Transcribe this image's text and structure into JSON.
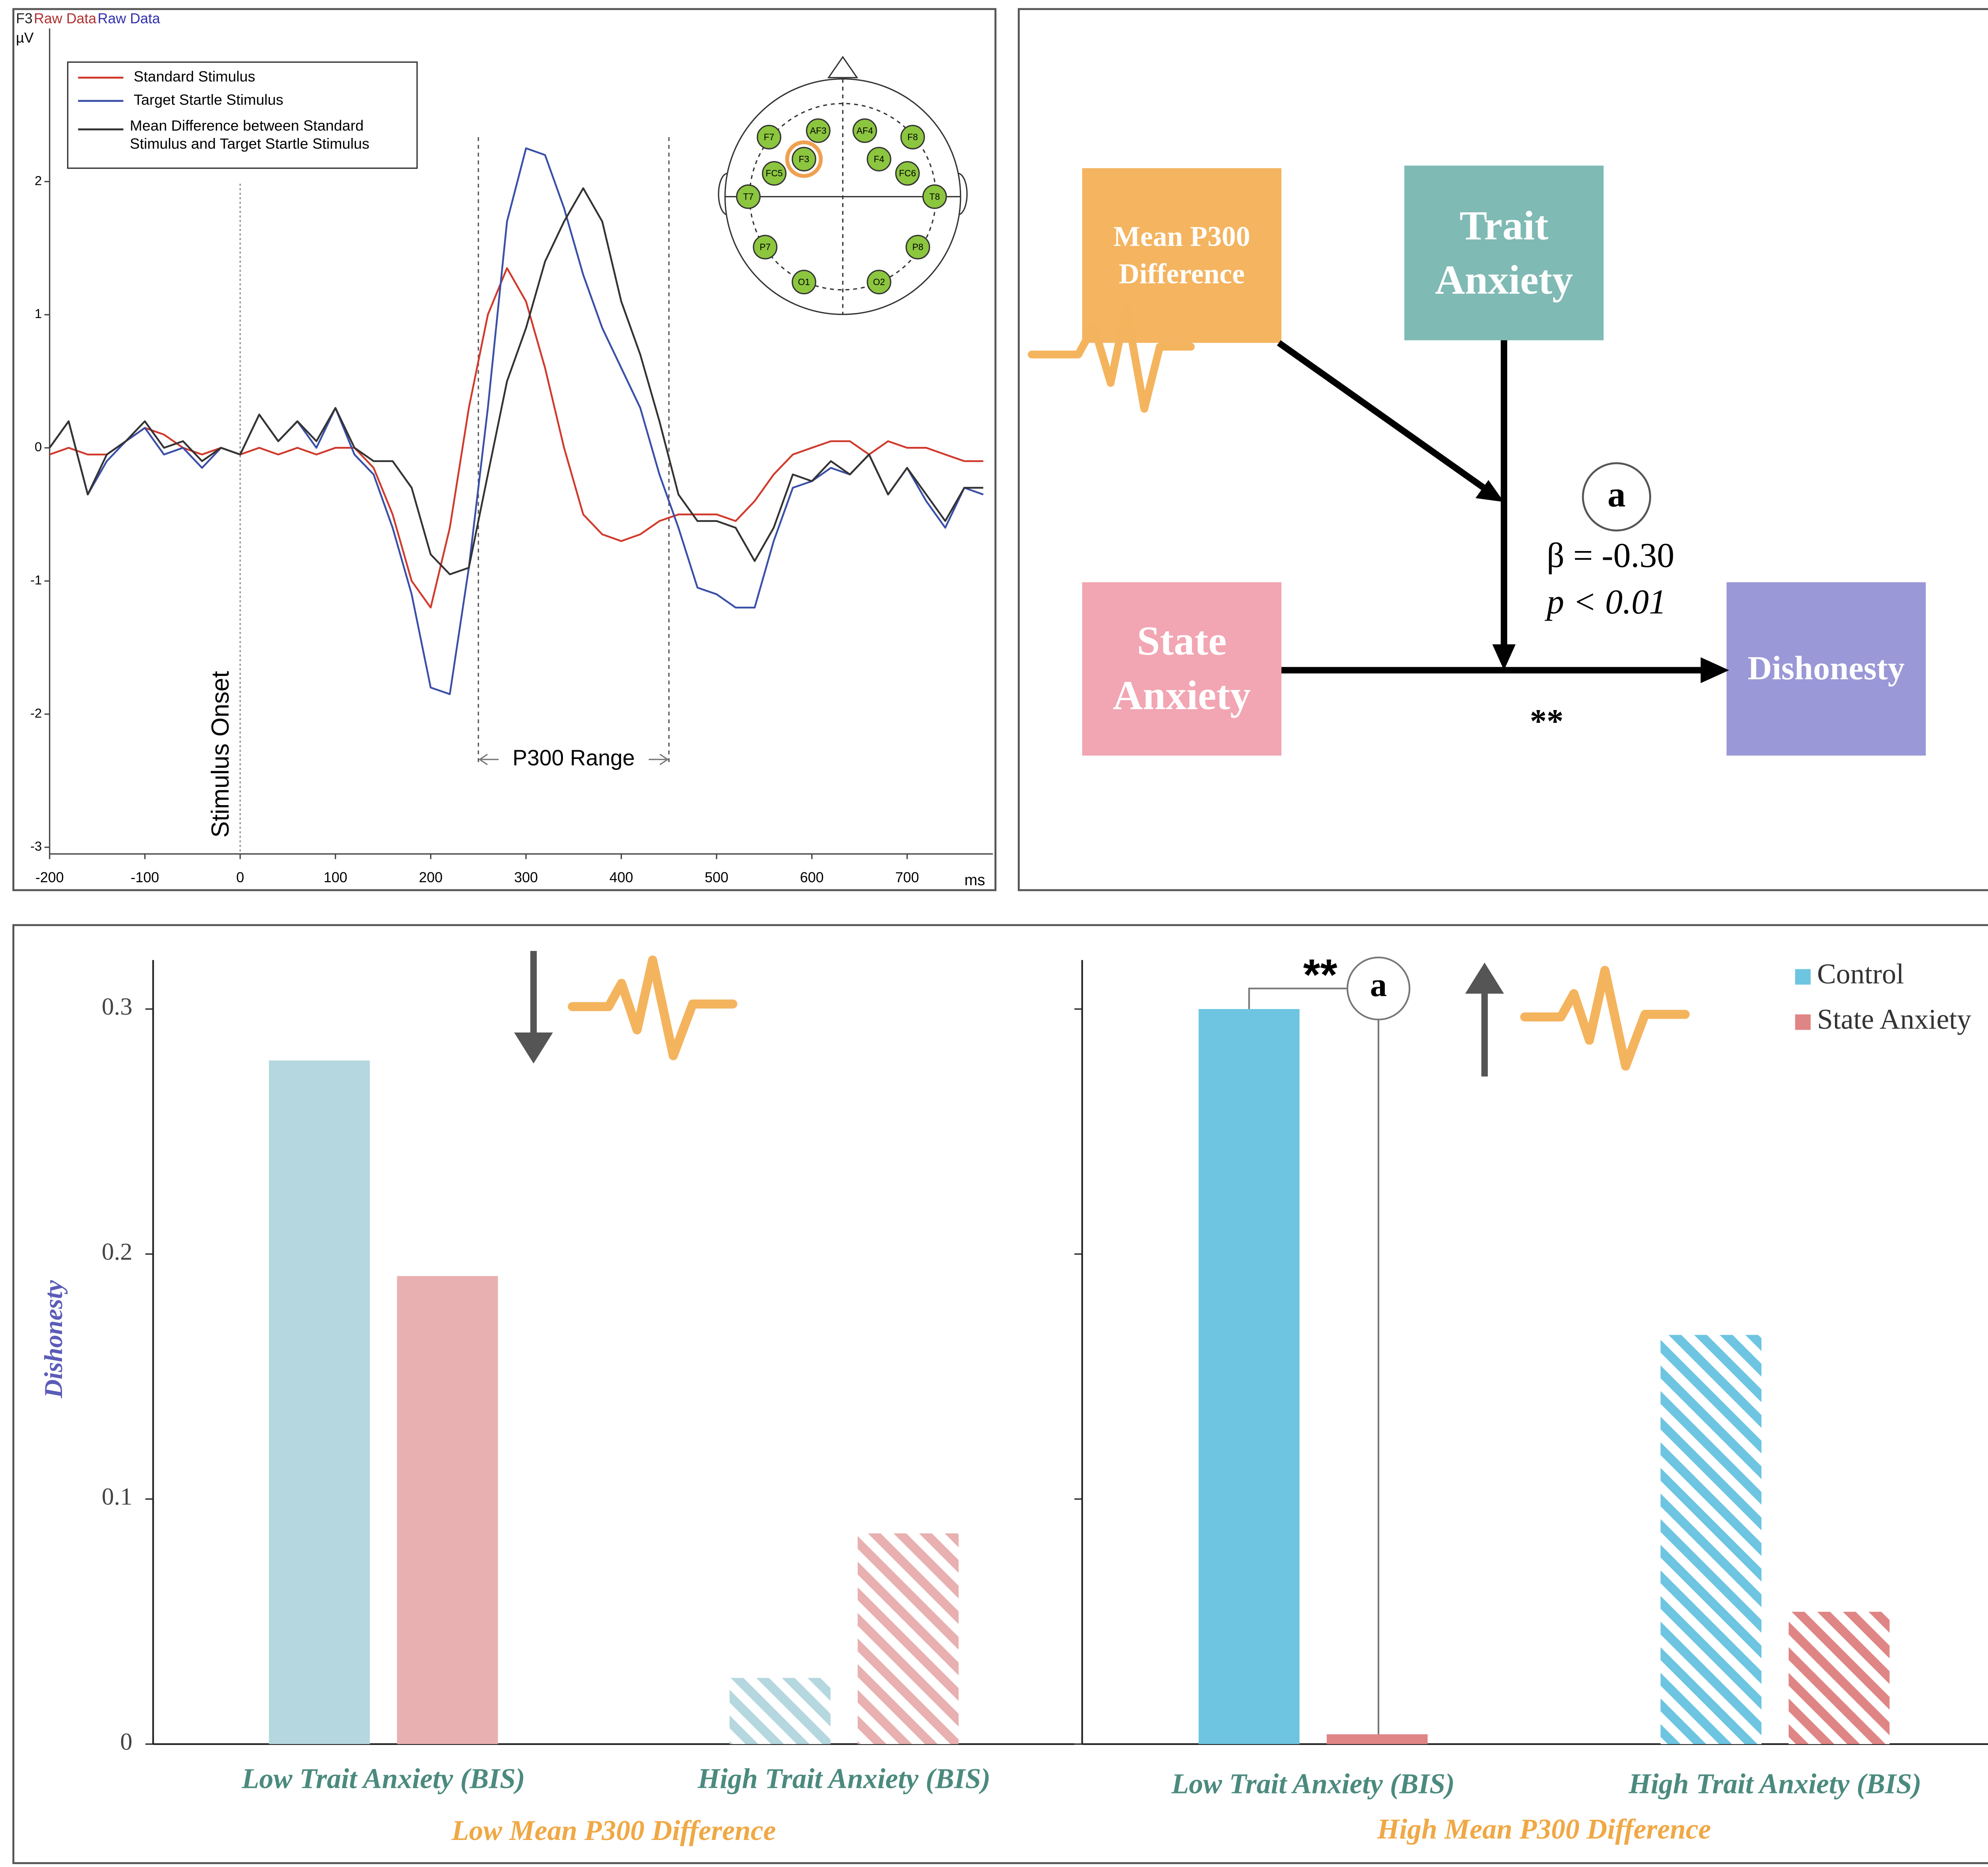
{
  "chart_data": [
    {
      "type": "line",
      "header": [
        "F3",
        "Raw Data",
        "Raw Data"
      ],
      "header_colors": [
        "#222222",
        "#b03030",
        "#3030b0"
      ],
      "ylabel": "µV",
      "xlabel": "ms",
      "x": [
        -200,
        -180,
        -160,
        -140,
        -120,
        -100,
        -80,
        -60,
        -40,
        -20,
        0,
        20,
        40,
        60,
        80,
        100,
        120,
        140,
        160,
        180,
        200,
        220,
        240,
        260,
        280,
        300,
        320,
        340,
        360,
        380,
        400,
        420,
        440,
        460,
        480,
        500,
        520,
        540,
        560,
        580,
        600,
        620,
        640,
        660,
        680,
        700,
        720,
        740,
        760,
        780
      ],
      "series": [
        {
          "name": "Standard Stimulus",
          "color": "#d03a2c",
          "values": [
            -0.05,
            0,
            -0.05,
            -0.05,
            0.05,
            0.15,
            0.1,
            0,
            -0.05,
            0,
            -0.05,
            0,
            -0.05,
            0,
            -0.05,
            0,
            0,
            -0.15,
            -0.5,
            -1.0,
            -1.2,
            -0.6,
            0.3,
            1.0,
            1.35,
            1.1,
            0.6,
            0,
            -0.5,
            -0.65,
            -0.7,
            -0.65,
            -0.55,
            -0.5,
            -0.5,
            -0.5,
            -0.55,
            -0.4,
            -0.2,
            -0.05,
            0,
            0.05,
            0.05,
            -0.05,
            0.05,
            0,
            0,
            -0.05,
            -0.1,
            -0.1
          ]
        },
        {
          "name": "Target Startle Stimulus",
          "color": "#3a4fa8",
          "values": [
            0,
            0.2,
            -0.35,
            -0.1,
            0.05,
            0.15,
            -0.05,
            0,
            -0.15,
            0,
            -0.05,
            0.25,
            0.05,
            0.2,
            0,
            0.3,
            -0.05,
            -0.2,
            -0.6,
            -1.1,
            -1.8,
            -1.85,
            -0.9,
            0.3,
            1.7,
            2.25,
            2.2,
            1.8,
            1.3,
            0.9,
            0.6,
            0.3,
            -0.2,
            -0.6,
            -1.05,
            -1.1,
            -1.2,
            -1.2,
            -0.7,
            -0.3,
            -0.25,
            -0.15,
            -0.2,
            -0.05,
            -0.35,
            -0.15,
            -0.4,
            -0.6,
            -0.3,
            -0.35
          ]
        },
        {
          "name": "Mean Difference between Standard Stimulus and Target Startle Stimulus",
          "color": "#333333",
          "values": [
            0,
            0.2,
            -0.35,
            -0.05,
            0.05,
            0.2,
            0,
            0.05,
            -0.1,
            0,
            -0.05,
            0.25,
            0.05,
            0.2,
            0.05,
            0.3,
            0,
            -0.1,
            -0.1,
            -0.3,
            -0.8,
            -0.95,
            -0.9,
            -0.2,
            0.5,
            0.9,
            1.4,
            1.7,
            1.95,
            1.7,
            1.1,
            0.7,
            0.2,
            -0.35,
            -0.55,
            -0.55,
            -0.6,
            -0.85,
            -0.6,
            -0.2,
            -0.25,
            -0.1,
            -0.2,
            -0.05,
            -0.35,
            -0.15,
            -0.35,
            -0.55,
            -0.3,
            -0.3
          ]
        }
      ],
      "xlim": [
        -200,
        790
      ],
      "ylim": [
        -3.05,
        3.15
      ],
      "xticks": [
        -200,
        -100,
        0,
        100,
        200,
        300,
        400,
        500,
        600,
        700
      ],
      "yticks": [
        -3,
        -2,
        -1,
        0,
        1,
        2
      ],
      "stimulus_onset": {
        "x": 0,
        "label": "Stimulus Onset"
      },
      "p300_range": {
        "range": [
          250,
          450
        ],
        "label": "P300 Range"
      },
      "electrodes": [
        "F7",
        "AF3",
        "AF4",
        "F8",
        "F3",
        "F4",
        "FC5",
        "FC6",
        "T7",
        "T8",
        "P7",
        "P8",
        "O1",
        "O2"
      ],
      "highlight": 4
    },
    {
      "type": "bar",
      "categories": [
        "Low Trait Anxiety (BIS)",
        "High Trait Anxiety (BIS)"
      ],
      "xlabel": "Low Mean P300 Difference",
      "ylabel": "Dishonesty",
      "series": [
        {
          "name": "Control",
          "color": "#b5d7df",
          "values": [
            0.279,
            0.027
          ]
        },
        {
          "name": "State Anxiety",
          "color": "#e8b0b0",
          "values": [
            0.191,
            0.086
          ]
        }
      ],
      "hatch": [
        false,
        true
      ],
      "ylim": [
        0,
        0.32
      ],
      "yticks": [
        0,
        0.1,
        0.2,
        0.3
      ],
      "tick_labels": true,
      "legend": false
    },
    {
      "type": "bar",
      "categories": [
        "Low Trait Anxiety (BIS)",
        "High Trait Anxiety (BIS)"
      ],
      "xlabel": "High Mean P300 Difference",
      "series": [
        {
          "name": "Control",
          "color": "#6dc5e2",
          "values": [
            0.3,
            0.167
          ]
        },
        {
          "name": "State Anxiety",
          "color": "#e08585",
          "values": [
            0.004,
            0.054
          ]
        }
      ],
      "hatch": [
        false,
        true
      ],
      "ylim": [
        0,
        0.32
      ],
      "yticks": [
        0,
        0.1,
        0.2,
        0.3
      ],
      "tick_labels": false,
      "legend": "upper right",
      "annotation": {
        "significance": "**",
        "label": "a"
      }
    }
  ],
  "diagram": {
    "nodes": [
      {
        "label": "Mean P300 Difference",
        "color": "#f4b460"
      },
      {
        "label": "Trait Anxiety",
        "color": "#7fbab4"
      },
      {
        "label": "State Anxiety",
        "color": "#f2a5b2"
      },
      {
        "label": "Dishonesty",
        "color": "#9a98d6"
      }
    ],
    "moderation_label": "a",
    "beta": "β = -0.30",
    "p": "p < 0.01",
    "significance": "**"
  }
}
